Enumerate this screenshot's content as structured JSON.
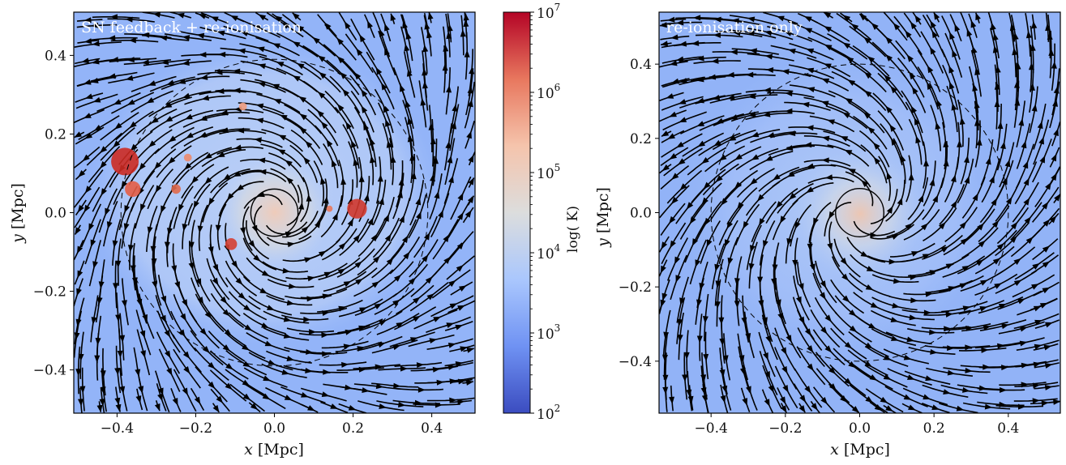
{
  "chart_data": [
    {
      "type": "heatmap",
      "subtype": "temperature map with velocity streamlines",
      "panel_label": "SN feedback + re-ionisation",
      "xlabel_italic": "x",
      "xlabel_unit": " [Mpc]",
      "ylabel_italic": "y",
      "ylabel_unit": " [Mpc]",
      "xlim": [
        -0.51,
        0.51
      ],
      "ylim": [
        -0.51,
        0.51
      ],
      "xticks": [
        -0.4,
        -0.2,
        0.0,
        0.2,
        0.4
      ],
      "xtick_labels": [
        "−0.4",
        "−0.2",
        "0.0",
        "0.2",
        "0.4"
      ],
      "yticks": [
        -0.4,
        -0.2,
        0.0,
        0.2,
        0.4
      ],
      "ytick_labels": [
        "−0.4",
        "−0.2",
        "0.0",
        "0.2",
        "0.4"
      ],
      "background_color": "#93b4f8",
      "circles": [
        {
          "cx": 0.0,
          "cy": 0.0,
          "r": 0.39,
          "style": "dashed"
        },
        {
          "cx": 0.0,
          "cy": 0.0,
          "r": 0.06,
          "style": "solid"
        }
      ],
      "hot_spots": [
        {
          "x": -0.38,
          "y": 0.13,
          "r": 0.035,
          "color": "#cc2a22"
        },
        {
          "x": -0.36,
          "y": 0.06,
          "r": 0.02,
          "color": "#e65d45"
        },
        {
          "x": -0.25,
          "y": 0.06,
          "r": 0.012,
          "color": "#e06a4c"
        },
        {
          "x": -0.22,
          "y": 0.14,
          "r": 0.01,
          "color": "#ec8a6c"
        },
        {
          "x": -0.11,
          "y": -0.08,
          "r": 0.015,
          "color": "#d54034"
        },
        {
          "x": -0.08,
          "y": 0.27,
          "r": 0.01,
          "color": "#f19d80"
        },
        {
          "x": 0.21,
          "y": 0.01,
          "r": 0.025,
          "color": "#d0372c"
        },
        {
          "x": 0.14,
          "y": 0.01,
          "r": 0.008,
          "color": "#e8795c"
        }
      ]
    },
    {
      "type": "heatmap",
      "subtype": "temperature map with velocity streamlines",
      "panel_label": "re-ionisation only",
      "xlabel_italic": "x",
      "xlabel_unit": " [Mpc]",
      "ylabel_italic": "y",
      "ylabel_unit": " [Mpc]",
      "xlim": [
        -0.54,
        0.54
      ],
      "ylim": [
        -0.54,
        0.54
      ],
      "xticks": [
        -0.4,
        -0.2,
        0.0,
        0.2,
        0.4
      ],
      "xtick_labels": [
        "−0.4",
        "−0.2",
        "0.0",
        "0.2",
        "0.4"
      ],
      "yticks": [
        -0.4,
        -0.2,
        0.0,
        0.2,
        0.4
      ],
      "ytick_labels": [
        "−0.4",
        "−0.2",
        "0.0",
        "0.2",
        "0.4"
      ],
      "background_color": "#92b3f7",
      "circles": [
        {
          "cx": 0.0,
          "cy": 0.0,
          "r": 0.4,
          "style": "dashed"
        },
        {
          "cx": 0.0,
          "cy": 0.0,
          "r": 0.065,
          "style": "solid"
        }
      ],
      "hot_spots": []
    }
  ],
  "colorbar": {
    "label": "log( K)",
    "scale": "log",
    "range": [
      100,
      10000000
    ],
    "tick_bases": [
      "10",
      "10",
      "10",
      "10",
      "10",
      "10"
    ],
    "tick_exponents": [
      "2",
      "3",
      "4",
      "5",
      "6",
      "7"
    ],
    "colormap_stops": [
      "#3b4cc0",
      "#6f92f3",
      "#aac7fd",
      "#dcdddd",
      "#f5c4ac",
      "#e8775e",
      "#b40426"
    ]
  }
}
